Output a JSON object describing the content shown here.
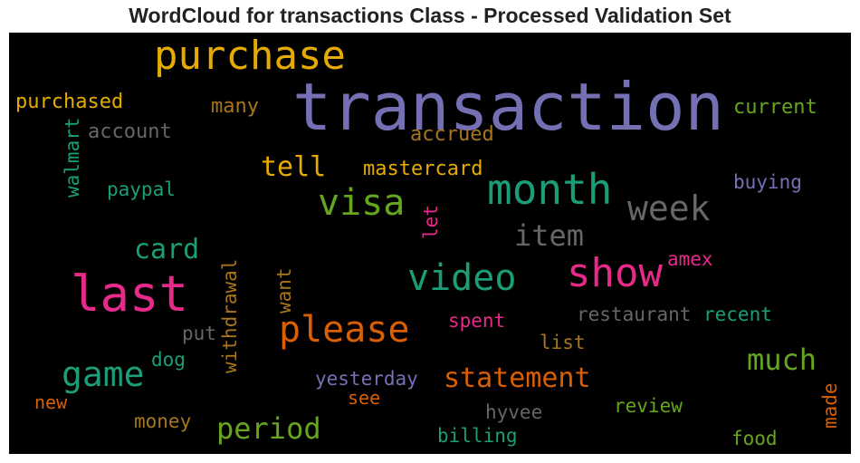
{
  "title": "WordCloud for transactions Class - Processed Validation Set",
  "palette": {
    "purple": "#7570b3",
    "gold": "#e6ab02",
    "green": "#1b9e77",
    "lime": "#66a61e",
    "pink": "#e7298a",
    "orange": "#d95f02",
    "gray": "#666666",
    "brown": "#a6761d"
  },
  "words": {
    "transaction": "transaction",
    "purchase": "purchase",
    "last": "last",
    "month": "month",
    "show": "show",
    "visa": "visa",
    "week": "week",
    "video": "video",
    "please": "please",
    "game": "game",
    "statement": "statement",
    "period": "period",
    "card": "card",
    "much": "much",
    "item": "item",
    "tell": "tell",
    "mastercard": "mastercard",
    "purchased": "purchased",
    "account": "account",
    "accrued": "accrued",
    "many": "many",
    "current": "current",
    "paypal": "paypal",
    "buying": "buying",
    "walmart": "walmart",
    "let": "let",
    "amex": "amex",
    "withdrawal": "withdrawal",
    "want": "want",
    "restaurant": "restaurant",
    "recent": "recent",
    "spent": "spent",
    "put": "put",
    "list": "list",
    "dog": "dog",
    "yesterday": "yesterday",
    "see": "see",
    "new": "new",
    "money": "money",
    "hyvee": "hyvee",
    "review": "review",
    "billing": "billing",
    "food": "food",
    "made": "made"
  }
}
